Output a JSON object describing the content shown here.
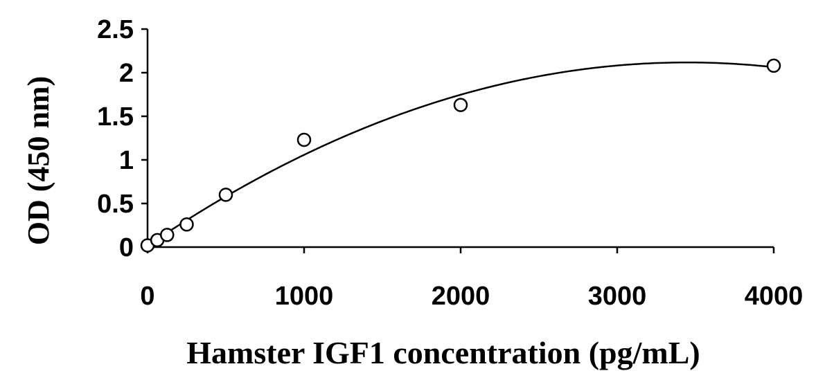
{
  "chart_data": {
    "type": "scatter",
    "xlabel": "Hamster IGF1 concentration (pg/mL)",
    "ylabel": "OD (450 nm)",
    "xlim": [
      0,
      4000
    ],
    "ylim": [
      0,
      2.5
    ],
    "xticks": [
      0,
      1000,
      2000,
      3000,
      4000
    ],
    "yticks": [
      0,
      0.5,
      1,
      1.5,
      2,
      2.5
    ],
    "xtick_labels": [
      "0",
      "1000",
      "2000",
      "3000",
      "4000"
    ],
    "ytick_labels": [
      "0",
      "0.5",
      "1",
      "1.5",
      "2",
      "2.5"
    ],
    "grid": false,
    "series": [
      {
        "marker": "open-circle",
        "x": [
          0,
          62.5,
          125,
          250,
          500,
          1000,
          2000,
          4000
        ],
        "y": [
          0.02,
          0.08,
          0.14,
          0.26,
          0.6,
          1.23,
          1.63,
          2.08
        ]
      }
    ],
    "trendline": {
      "type": "polynomial",
      "order": 2,
      "coefficients": [
        0.015,
        0.00122,
        -1.77e-07
      ]
    }
  }
}
